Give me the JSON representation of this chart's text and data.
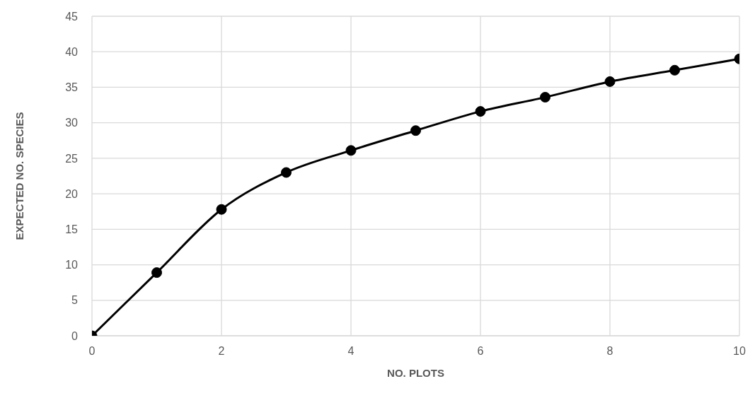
{
  "chart_data": {
    "type": "line",
    "xlabel": "NO. PLOTS",
    "ylabel": "EXPECTED NO. SPECIES",
    "x": [
      0,
      1,
      2,
      3,
      4,
      5,
      6,
      7,
      8,
      9,
      10
    ],
    "series": [
      {
        "color": "#000000",
        "values": [
          0,
          8.9,
          17.8,
          23,
          26.1,
          28.9,
          31.6,
          33.6,
          35.8,
          37.4,
          39
        ]
      }
    ],
    "xlim": [
      0,
      10
    ],
    "xticks": [
      0,
      2,
      4,
      6,
      8,
      10
    ],
    "ylim": [
      0,
      45
    ],
    "yticks": [
      0,
      5,
      10,
      15,
      20,
      25,
      30,
      35,
      40,
      45
    ],
    "grid": true,
    "marker": "circle",
    "line_style": "solid",
    "legend": false
  }
}
